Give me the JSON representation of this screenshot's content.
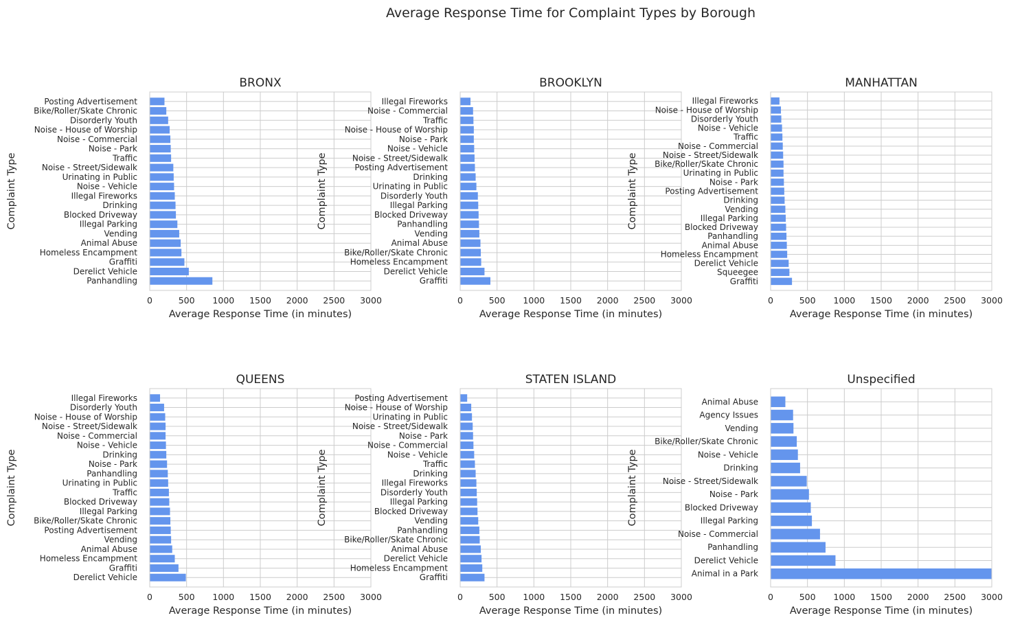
{
  "figure": {
    "suptitle": "Average Response Time for Complaint Types by Borough"
  },
  "style": {
    "bar_color": "#6495ed",
    "grid_color": "#cccccc",
    "text_color": "#262626"
  },
  "chart_data": [
    {
      "type": "bar",
      "orientation": "horizontal",
      "title": "BRONX",
      "xlabel": "Average Response Time (in minutes)",
      "ylabel": "Complaint Type",
      "xlim": [
        0,
        3000
      ],
      "xticks": [
        0,
        500,
        1000,
        1500,
        2000,
        2500,
        3000
      ],
      "grid": true,
      "categories": [
        "Posting Advertisement",
        "Bike/Roller/Skate Chronic",
        "Disorderly Youth",
        "Noise - House of Worship",
        "Noise - Commercial",
        "Noise - Park",
        "Traffic",
        "Noise - Street/Sidewalk",
        "Urinating in Public",
        "Noise - Vehicle",
        "Illegal Fireworks",
        "Drinking",
        "Blocked Driveway",
        "Illegal Parking",
        "Vending",
        "Animal Abuse",
        "Homeless Encampment",
        "Graffiti",
        "Derelict Vehicle",
        "Panhandling"
      ],
      "values": [
        200,
        225,
        250,
        270,
        280,
        285,
        290,
        320,
        325,
        330,
        340,
        350,
        355,
        375,
        400,
        420,
        430,
        470,
        530,
        850
      ]
    },
    {
      "type": "bar",
      "orientation": "horizontal",
      "title": "BROOKLYN",
      "xlabel": "Average Response Time (in minutes)",
      "ylabel": "Complaint Type",
      "xlim": [
        0,
        3000
      ],
      "xticks": [
        0,
        500,
        1000,
        1500,
        2000,
        2500,
        3000
      ],
      "grid": true,
      "categories": [
        "Illegal Fireworks",
        "Noise - Commercial",
        "Traffic",
        "Noise - House of Worship",
        "Noise - Park",
        "Noise - Vehicle",
        "Noise - Street/Sidewalk",
        "Posting Advertisement",
        "Drinking",
        "Urinating in Public",
        "Disorderly Youth",
        "Illegal Parking",
        "Blocked Driveway",
        "Panhandling",
        "Vending",
        "Animal Abuse",
        "Bike/Roller/Skate Chronic",
        "Homeless Encampment",
        "Derelict Vehicle",
        "Graffiti"
      ],
      "values": [
        140,
        175,
        180,
        185,
        185,
        190,
        195,
        200,
        210,
        220,
        240,
        245,
        250,
        255,
        260,
        275,
        280,
        285,
        330,
        410
      ]
    },
    {
      "type": "bar",
      "orientation": "horizontal",
      "title": "MANHATTAN",
      "xlabel": "Average Response Time (in minutes)",
      "ylabel": "Complaint Type",
      "xlim": [
        0,
        3000
      ],
      "xticks": [
        0,
        500,
        1000,
        1500,
        2000,
        2500,
        3000
      ],
      "grid": true,
      "categories": [
        "Illegal Fireworks",
        "Noise - House of Worship",
        "Disorderly Youth",
        "Noise - Vehicle",
        "Traffic",
        "Noise - Commercial",
        "Noise - Street/Sidewalk",
        "Bike/Roller/Skate Chronic",
        "Urinating in Public",
        "Noise - Park",
        "Posting Advertisement",
        "Drinking",
        "Vending",
        "Illegal Parking",
        "Blocked Driveway",
        "Panhandling",
        "Animal Abuse",
        "Homeless Encampment",
        "Derelict Vehicle",
        "Squeegee",
        "Graffiti"
      ],
      "values": [
        120,
        140,
        145,
        155,
        160,
        165,
        170,
        175,
        175,
        180,
        185,
        190,
        200,
        205,
        210,
        215,
        220,
        225,
        245,
        255,
        290
      ]
    },
    {
      "type": "bar",
      "orientation": "horizontal",
      "title": "QUEENS",
      "xlabel": "Average Response Time (in minutes)",
      "ylabel": "Complaint Type",
      "xlim": [
        0,
        3000
      ],
      "xticks": [
        0,
        500,
        1000,
        1500,
        2000,
        2500,
        3000
      ],
      "grid": true,
      "categories": [
        "Illegal Fireworks",
        "Disorderly Youth",
        "Noise - House of Worship",
        "Noise - Street/Sidewalk",
        "Noise - Commercial",
        "Noise - Vehicle",
        "Drinking",
        "Noise - Park",
        "Panhandling",
        "Urinating in Public",
        "Traffic",
        "Blocked Driveway",
        "Illegal Parking",
        "Bike/Roller/Skate Chronic",
        "Posting Advertisement",
        "Vending",
        "Animal Abuse",
        "Homeless Encampment",
        "Graffiti",
        "Derelict Vehicle"
      ],
      "values": [
        140,
        195,
        210,
        215,
        215,
        220,
        225,
        235,
        245,
        250,
        260,
        265,
        275,
        280,
        285,
        290,
        305,
        340,
        390,
        490
      ]
    },
    {
      "type": "bar",
      "orientation": "horizontal",
      "title": "STATEN ISLAND",
      "xlabel": "Average Response Time (in minutes)",
      "ylabel": "Complaint Type",
      "xlim": [
        0,
        3000
      ],
      "xticks": [
        0,
        500,
        1000,
        1500,
        2000,
        2500,
        3000
      ],
      "grid": true,
      "categories": [
        "Posting Advertisement",
        "Noise - House of Worship",
        "Urinating in Public",
        "Noise - Street/Sidewalk",
        "Noise - Park",
        "Noise - Commercial",
        "Noise - Vehicle",
        "Traffic",
        "Drinking",
        "Illegal Fireworks",
        "Disorderly Youth",
        "Illegal Parking",
        "Blocked Driveway",
        "Vending",
        "Panhandling",
        "Bike/Roller/Skate Chronic",
        "Animal Abuse",
        "Derelict Vehicle",
        "Homeless Encampment",
        "Graffiti"
      ],
      "values": [
        95,
        150,
        160,
        170,
        175,
        180,
        190,
        200,
        210,
        220,
        225,
        230,
        235,
        245,
        260,
        265,
        280,
        290,
        300,
        330
      ]
    },
    {
      "type": "bar",
      "orientation": "horizontal",
      "title": "Unspecified",
      "xlabel": "Average Response Time (in minutes)",
      "ylabel": "Complaint Type",
      "xlim": [
        0,
        3000
      ],
      "xticks": [
        0,
        500,
        1000,
        1500,
        2000,
        2500,
        3000
      ],
      "grid": true,
      "categories": [
        "Animal Abuse",
        "Agency Issues",
        "Vending",
        "Bike/Roller/Skate Chronic",
        "Noise - Vehicle",
        "Drinking",
        "Noise - Street/Sidewalk",
        "Noise - Park",
        "Blocked Driveway",
        "Illegal Parking",
        "Noise - Commercial",
        "Panhandling",
        "Derelict Vehicle",
        "Animal in a Park"
      ],
      "values": [
        200,
        305,
        310,
        355,
        370,
        400,
        490,
        520,
        545,
        560,
        670,
        745,
        880,
        3000
      ]
    }
  ]
}
